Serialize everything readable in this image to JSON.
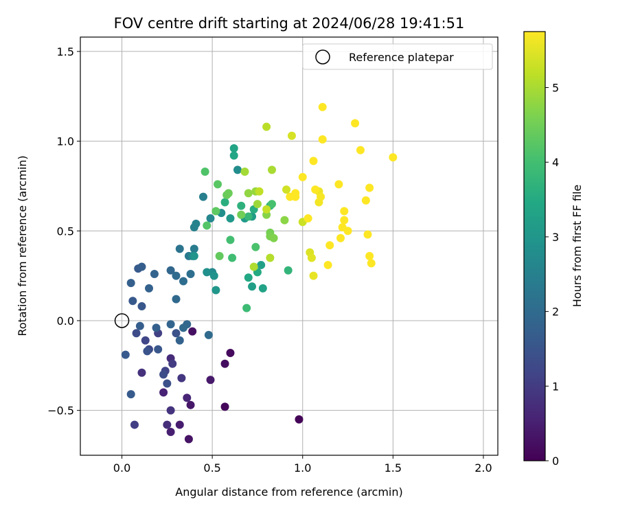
{
  "chart_data": {
    "type": "scatter",
    "title": "FOV centre drift starting at 2024/06/28 19:41:51",
    "xlabel": "Angular distance from reference (arcmin)",
    "ylabel": "Rotation from reference (arcmin)",
    "xlim": [
      -0.23,
      2.08
    ],
    "ylim": [
      -0.75,
      1.58
    ],
    "xticks": [
      0.0,
      0.5,
      1.0,
      1.5,
      2.0
    ],
    "xtick_labels": [
      "0.0",
      "0.5",
      "1.0",
      "1.5",
      "2.0"
    ],
    "yticks": [
      -0.5,
      0.0,
      0.5,
      1.0,
      1.5
    ],
    "ytick_labels": [
      "−0.5",
      "0.0",
      "0.5",
      "1.0",
      "1.5"
    ],
    "grid": true,
    "colormap": "viridis",
    "colorbar": {
      "label": "Hours from first FF file",
      "range": [
        0,
        5.75
      ],
      "ticks": [
        0,
        1,
        2,
        3,
        4,
        5
      ],
      "tick_labels": [
        "0",
        "1",
        "2",
        "3",
        "4",
        "5"
      ]
    },
    "legend": {
      "position": "top-right",
      "entries": [
        {
          "label": "Reference platepar",
          "marker": "open-circle"
        }
      ]
    },
    "reference_point": {
      "x": 0.0,
      "y": 0.0
    },
    "points": [
      {
        "x": 0.98,
        "y": -0.55,
        "t": 0.05
      },
      {
        "x": 0.57,
        "y": -0.48,
        "t": 0.1
      },
      {
        "x": 0.6,
        "y": -0.18,
        "t": 0.15
      },
      {
        "x": 0.57,
        "y": -0.24,
        "t": 0.2
      },
      {
        "x": 0.39,
        "y": -0.06,
        "t": 0.25
      },
      {
        "x": 0.37,
        "y": -0.66,
        "t": 0.3
      },
      {
        "x": 0.38,
        "y": -0.47,
        "t": 0.35
      },
      {
        "x": 0.49,
        "y": -0.33,
        "t": 0.4
      },
      {
        "x": 0.32,
        "y": -0.58,
        "t": 0.45
      },
      {
        "x": 0.27,
        "y": -0.62,
        "t": 0.5
      },
      {
        "x": 0.23,
        "y": -0.4,
        "t": 0.55
      },
      {
        "x": 0.36,
        "y": -0.43,
        "t": 0.6
      },
      {
        "x": 0.27,
        "y": -0.21,
        "t": 0.7
      },
      {
        "x": 0.25,
        "y": -0.58,
        "t": 0.75
      },
      {
        "x": 0.11,
        "y": -0.29,
        "t": 0.8
      },
      {
        "x": 0.27,
        "y": -0.5,
        "t": 0.85
      },
      {
        "x": 0.33,
        "y": -0.32,
        "t": 0.9
      },
      {
        "x": 0.28,
        "y": -0.24,
        "t": 1.0
      },
      {
        "x": 0.07,
        "y": -0.58,
        "t": 1.05
      },
      {
        "x": 0.2,
        "y": -0.07,
        "t": 1.1
      },
      {
        "x": 0.24,
        "y": -0.28,
        "t": 1.15
      },
      {
        "x": 0.13,
        "y": -0.11,
        "t": 1.2
      },
      {
        "x": 0.15,
        "y": -0.16,
        "t": 1.25
      },
      {
        "x": 0.08,
        "y": -0.07,
        "t": 1.3
      },
      {
        "x": 0.23,
        "y": -0.3,
        "t": 1.35
      },
      {
        "x": 0.25,
        "y": -0.35,
        "t": 1.4
      },
      {
        "x": 0.3,
        "y": -0.07,
        "t": 1.45
      },
      {
        "x": 0.14,
        "y": -0.17,
        "t": 1.5
      },
      {
        "x": 0.2,
        "y": -0.16,
        "t": 1.55
      },
      {
        "x": 0.02,
        "y": -0.19,
        "t": 1.6
      },
      {
        "x": 0.05,
        "y": -0.41,
        "t": 1.65
      },
      {
        "x": 0.1,
        "y": -0.03,
        "t": 1.7
      },
      {
        "x": 0.19,
        "y": -0.04,
        "t": 1.75
      },
      {
        "x": 0.32,
        "y": -0.11,
        "t": 1.8
      },
      {
        "x": 0.27,
        "y": -0.02,
        "t": 1.85
      },
      {
        "x": 0.36,
        "y": -0.02,
        "t": 1.9
      },
      {
        "x": 0.34,
        "y": -0.04,
        "t": 1.95
      },
      {
        "x": 0.48,
        "y": -0.08,
        "t": 2.0
      },
      {
        "x": 0.11,
        "y": 0.08,
        "t": 1.55
      },
      {
        "x": 0.06,
        "y": 0.11,
        "t": 1.6
      },
      {
        "x": 0.09,
        "y": 0.29,
        "t": 1.65
      },
      {
        "x": 0.11,
        "y": 0.3,
        "t": 1.7
      },
      {
        "x": 0.05,
        "y": 0.21,
        "t": 1.75
      },
      {
        "x": 0.15,
        "y": 0.18,
        "t": 1.8
      },
      {
        "x": 0.18,
        "y": 0.26,
        "t": 1.85
      },
      {
        "x": 0.27,
        "y": 0.28,
        "t": 1.9
      },
      {
        "x": 0.3,
        "y": 0.12,
        "t": 1.95
      },
      {
        "x": 0.3,
        "y": 0.25,
        "t": 2.0
      },
      {
        "x": 0.34,
        "y": 0.22,
        "t": 2.05
      },
      {
        "x": 0.38,
        "y": 0.26,
        "t": 2.1
      },
      {
        "x": 0.32,
        "y": 0.4,
        "t": 2.2
      },
      {
        "x": 0.37,
        "y": 0.36,
        "t": 2.3
      },
      {
        "x": 0.4,
        "y": 0.4,
        "t": 2.4
      },
      {
        "x": 0.45,
        "y": 0.69,
        "t": 2.45
      },
      {
        "x": 0.4,
        "y": 0.52,
        "t": 2.5
      },
      {
        "x": 0.41,
        "y": 0.54,
        "t": 2.55
      },
      {
        "x": 0.39,
        "y": 0.36,
        "t": 2.6
      },
      {
        "x": 0.49,
        "y": 0.57,
        "t": 2.65
      },
      {
        "x": 0.5,
        "y": 0.27,
        "t": 2.7
      },
      {
        "x": 0.64,
        "y": 0.84,
        "t": 2.75
      },
      {
        "x": 0.55,
        "y": 0.6,
        "t": 2.8
      },
      {
        "x": 0.47,
        "y": 0.27,
        "t": 2.85
      },
      {
        "x": 0.51,
        "y": 0.25,
        "t": 2.9
      },
      {
        "x": 0.4,
        "y": 0.36,
        "t": 2.95
      },
      {
        "x": 0.52,
        "y": 0.17,
        "t": 3.0
      },
      {
        "x": 0.6,
        "y": 0.57,
        "t": 3.05
      },
      {
        "x": 0.68,
        "y": 0.57,
        "t": 3.1
      },
      {
        "x": 0.72,
        "y": 0.58,
        "t": 3.15
      },
      {
        "x": 0.72,
        "y": 0.19,
        "t": 3.2
      },
      {
        "x": 0.77,
        "y": 0.31,
        "t": 3.25
      },
      {
        "x": 0.78,
        "y": 0.18,
        "t": 3.3
      },
      {
        "x": 0.62,
        "y": 0.96,
        "t": 3.35
      },
      {
        "x": 0.62,
        "y": 0.92,
        "t": 3.4
      },
      {
        "x": 0.7,
        "y": 0.24,
        "t": 3.45
      },
      {
        "x": 0.75,
        "y": 0.27,
        "t": 3.5
      },
      {
        "x": 0.73,
        "y": 0.62,
        "t": 3.55
      },
      {
        "x": 0.57,
        "y": 0.66,
        "t": 3.6
      },
      {
        "x": 0.66,
        "y": 0.64,
        "t": 3.65
      },
      {
        "x": 0.82,
        "y": 0.64,
        "t": 3.7
      },
      {
        "x": 0.92,
        "y": 0.28,
        "t": 3.75
      },
      {
        "x": 0.7,
        "y": 0.58,
        "t": 3.8
      },
      {
        "x": 0.69,
        "y": 0.07,
        "t": 3.9
      },
      {
        "x": 0.61,
        "y": 0.35,
        "t": 3.95
      },
      {
        "x": 0.6,
        "y": 0.45,
        "t": 4.0
      },
      {
        "x": 0.83,
        "y": 0.65,
        "t": 4.05
      },
      {
        "x": 0.74,
        "y": 0.41,
        "t": 4.1
      },
      {
        "x": 0.46,
        "y": 0.83,
        "t": 4.15
      },
      {
        "x": 0.47,
        "y": 0.53,
        "t": 4.2
      },
      {
        "x": 0.53,
        "y": 0.76,
        "t": 4.25
      },
      {
        "x": 0.52,
        "y": 0.61,
        "t": 4.3
      },
      {
        "x": 0.54,
        "y": 0.36,
        "t": 4.35
      },
      {
        "x": 0.58,
        "y": 0.7,
        "t": 4.4
      },
      {
        "x": 0.59,
        "y": 0.71,
        "t": 4.45
      },
      {
        "x": 0.66,
        "y": 0.59,
        "t": 4.5
      },
      {
        "x": 0.82,
        "y": 0.49,
        "t": 4.55
      },
      {
        "x": 0.82,
        "y": 0.47,
        "t": 4.6
      },
      {
        "x": 0.84,
        "y": 0.46,
        "t": 4.65
      },
      {
        "x": 0.8,
        "y": 0.59,
        "t": 4.7
      },
      {
        "x": 0.9,
        "y": 0.56,
        "t": 4.75
      },
      {
        "x": 0.7,
        "y": 0.71,
        "t": 4.8
      },
      {
        "x": 0.74,
        "y": 0.72,
        "t": 4.85
      },
      {
        "x": 0.75,
        "y": 0.65,
        "t": 4.9
      },
      {
        "x": 0.68,
        "y": 0.83,
        "t": 4.95
      },
      {
        "x": 0.83,
        "y": 0.84,
        "t": 5.0
      },
      {
        "x": 0.73,
        "y": 0.3,
        "t": 5.05
      },
      {
        "x": 0.82,
        "y": 0.35,
        "t": 5.1
      },
      {
        "x": 0.8,
        "y": 1.08,
        "t": 5.15
      },
      {
        "x": 0.76,
        "y": 0.72,
        "t": 5.2
      },
      {
        "x": 0.8,
        "y": 0.62,
        "t": 5.25
      },
      {
        "x": 1.0,
        "y": 0.55,
        "t": 5.3
      },
      {
        "x": 0.91,
        "y": 0.73,
        "t": 5.35
      },
      {
        "x": 0.94,
        "y": 1.03,
        "t": 5.4
      },
      {
        "x": 1.04,
        "y": 0.38,
        "t": 5.45
      },
      {
        "x": 1.05,
        "y": 0.35,
        "t": 5.5
      },
      {
        "x": 1.06,
        "y": 0.25,
        "t": 5.55
      },
      {
        "x": 1.09,
        "y": 0.72,
        "t": 5.6
      },
      {
        "x": 1.09,
        "y": 0.66,
        "t": 5.65
      },
      {
        "x": 1.1,
        "y": 0.69,
        "t": 5.7
      },
      {
        "x": 1.11,
        "y": 1.19,
        "t": 5.75
      },
      {
        "x": 0.96,
        "y": 0.69,
        "t": 5.75
      },
      {
        "x": 1.0,
        "y": 0.8,
        "t": 5.75
      },
      {
        "x": 1.06,
        "y": 0.89,
        "t": 5.75
      },
      {
        "x": 1.07,
        "y": 0.73,
        "t": 5.75
      },
      {
        "x": 1.15,
        "y": 0.42,
        "t": 5.75
      },
      {
        "x": 1.2,
        "y": 0.76,
        "t": 5.75
      },
      {
        "x": 1.21,
        "y": 0.46,
        "t": 5.75
      },
      {
        "x": 1.22,
        "y": 0.52,
        "t": 5.75
      },
      {
        "x": 1.23,
        "y": 0.61,
        "t": 5.75
      },
      {
        "x": 1.23,
        "y": 0.56,
        "t": 5.75
      },
      {
        "x": 1.25,
        "y": 0.5,
        "t": 5.75
      },
      {
        "x": 1.29,
        "y": 1.1,
        "t": 5.75
      },
      {
        "x": 1.32,
        "y": 0.95,
        "t": 5.75
      },
      {
        "x": 1.35,
        "y": 0.67,
        "t": 5.75
      },
      {
        "x": 1.36,
        "y": 0.48,
        "t": 5.75
      },
      {
        "x": 1.37,
        "y": 0.74,
        "t": 5.75
      },
      {
        "x": 1.37,
        "y": 0.36,
        "t": 5.75
      },
      {
        "x": 1.38,
        "y": 0.32,
        "t": 5.75
      },
      {
        "x": 1.14,
        "y": 0.31,
        "t": 5.75
      },
      {
        "x": 1.11,
        "y": 1.01,
        "t": 5.75
      },
      {
        "x": 1.5,
        "y": 0.91,
        "t": 5.75
      },
      {
        "x": 0.96,
        "y": 0.71,
        "t": 5.75
      },
      {
        "x": 0.93,
        "y": 0.69,
        "t": 5.75
      },
      {
        "x": 1.03,
        "y": 0.57,
        "t": 5.75
      }
    ]
  }
}
